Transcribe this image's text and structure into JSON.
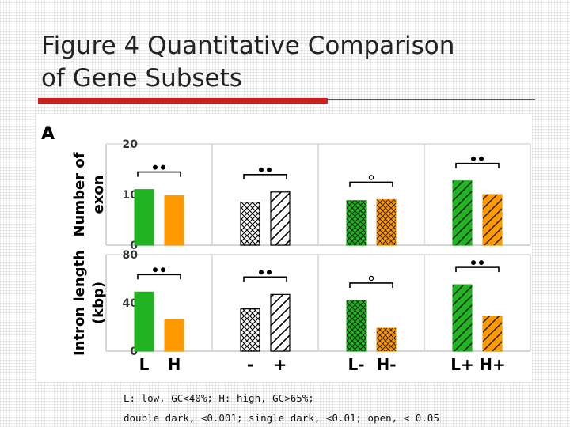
{
  "slide": {
    "title_line1": "Figure 4 Quantitative Comparison",
    "title_line2": "of Gene Subsets",
    "caption_line1": "L: low, GC<40%; H: high, GC>65%;",
    "caption_line2": "double dark, <0.001; single dark, <0.01; open, < 0.05"
  },
  "colors": {
    "low_gc": "#22b322",
    "high_gc": "#ff9900",
    "neutral": "#000000",
    "title_rule": "#cc1f1f"
  },
  "chart_data": {
    "type": "bar",
    "panel_label": "A",
    "groups": [
      {
        "x_labels": [
          "L",
          "H"
        ],
        "exon": [
          11,
          9.8
        ],
        "intron": [
          49,
          26
        ],
        "colors": [
          "#22b322",
          "#ff9900"
        ],
        "patterns": [
          "solid",
          "solid"
        ],
        "significance": "double dark"
      },
      {
        "x_labels": [
          "-",
          "+"
        ],
        "exon": [
          8.5,
          10.5
        ],
        "intron": [
          35,
          47
        ],
        "colors": [
          "#000000",
          "#000000"
        ],
        "patterns": [
          "crosshatch",
          "diagonal"
        ],
        "significance": "double dark"
      },
      {
        "x_labels": [
          "L-",
          "H-"
        ],
        "exon": [
          8.8,
          9
        ],
        "intron": [
          42,
          19
        ],
        "colors": [
          "#22b322",
          "#ff9900"
        ],
        "patterns": [
          "crosshatch",
          "crosshatch"
        ],
        "significance": "open"
      },
      {
        "x_labels": [
          "L+",
          "H+"
        ],
        "exon": [
          12.7,
          10
        ],
        "intron": [
          55,
          29
        ],
        "colors": [
          "#22b322",
          "#ff9900"
        ],
        "patterns": [
          "diagonal",
          "diagonal"
        ],
        "significance": "double dark"
      }
    ],
    "panels": [
      {
        "metric": "exon",
        "ylabel_line1": "Number of",
        "ylabel_line2": "exon",
        "ylim": [
          0,
          20
        ],
        "yticks": [
          "0",
          "10",
          "20"
        ]
      },
      {
        "metric": "intron",
        "ylabel_line1": "Intron length",
        "ylabel_line2": "(kbp)",
        "ylim": [
          0,
          80
        ],
        "yticks": [
          "0",
          "40",
          "80"
        ]
      }
    ]
  }
}
